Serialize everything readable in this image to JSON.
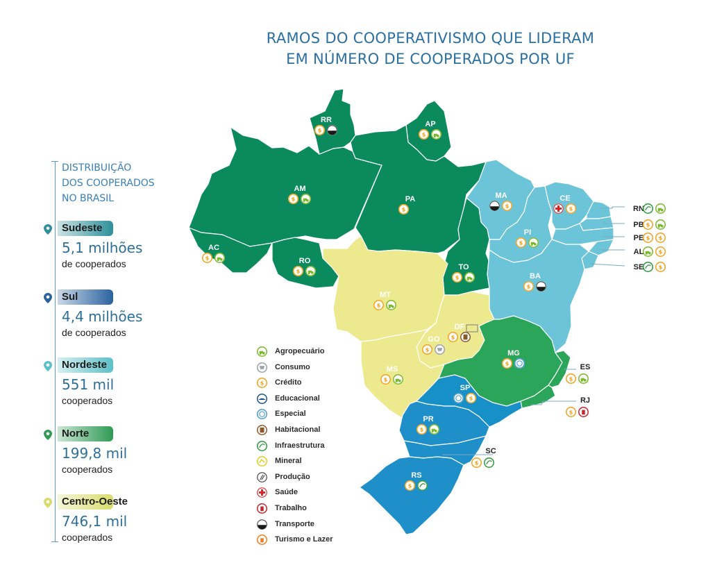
{
  "title": {
    "line1": "RAMOS DO COOPERATIVISMO QUE LIDERAM",
    "line2": "EM NÚMERO DE COOPERADOS POR UF"
  },
  "distribution": {
    "title_lines": [
      "DISTRIBUIÇÃO",
      "DOS COOPERADOS",
      "NO BRASIL"
    ],
    "regions": [
      {
        "name": "Sudeste",
        "value": "5,1 milhões",
        "sub": "de cooperados",
        "color": "#2e8f9a"
      },
      {
        "name": "Sul",
        "value": "4,4 milhões",
        "sub": "de cooperados",
        "color": "#2a62a0"
      },
      {
        "name": "Nordeste",
        "value": "551 mil",
        "sub": "cooperados",
        "color": "#5cc0c8"
      },
      {
        "name": "Norte",
        "value": "199,8 mil",
        "sub": "cooperados",
        "color": "#2f9a55"
      },
      {
        "name": "Centro-Oeste",
        "value": "746,1 mil",
        "sub": "cooperados",
        "color": "#d9dc6c"
      }
    ]
  },
  "colors": {
    "norte": "#0b8a5e",
    "nordeste": "#6cc4d9",
    "centro_oeste": "#ece98e",
    "sudeste_mg": "#2ba55a",
    "sudeste_sp": "#1690c7",
    "sul": "#1e8fc9"
  },
  "states": [
    {
      "abbr": "RR",
      "icons": [
        "credito",
        "transporte"
      ]
    },
    {
      "abbr": "AP",
      "icons": [
        "credito",
        "agropecuario"
      ]
    },
    {
      "abbr": "AM",
      "icons": [
        "credito",
        "agropecuario"
      ]
    },
    {
      "abbr": "PA",
      "icons": [
        "credito"
      ]
    },
    {
      "abbr": "AC",
      "icons": [
        "credito",
        "agropecuario"
      ]
    },
    {
      "abbr": "RO",
      "icons": [
        "credito",
        "agropecuario"
      ]
    },
    {
      "abbr": "TO",
      "icons": [
        "credito",
        "agropecuario"
      ]
    },
    {
      "abbr": "MA",
      "icons": [
        "transporte",
        "credito"
      ]
    },
    {
      "abbr": "CE",
      "icons": [
        "saude",
        "credito"
      ]
    },
    {
      "abbr": "PI",
      "icons": [
        "credito",
        "agropecuario"
      ]
    },
    {
      "abbr": "BA",
      "icons": [
        "credito",
        "transporte"
      ]
    },
    {
      "abbr": "MT",
      "icons": [
        "credito",
        "agropecuario"
      ]
    },
    {
      "abbr": "DF",
      "icons": [
        "credito",
        "habitacional"
      ]
    },
    {
      "abbr": "GO",
      "icons": [
        "credito",
        "consumo"
      ]
    },
    {
      "abbr": "MS",
      "icons": [
        "credito",
        "agropecuario"
      ]
    },
    {
      "abbr": "MG",
      "icons": [
        "credito",
        "especial"
      ]
    },
    {
      "abbr": "SP",
      "icons": [
        "especial",
        "credito"
      ]
    },
    {
      "abbr": "PR",
      "icons": [
        "credito",
        "agropecuario"
      ]
    },
    {
      "abbr": "RS",
      "icons": [
        "credito",
        "infraestrutura"
      ]
    },
    {
      "abbr": "SC",
      "icons": [
        "credito",
        "infraestrutura"
      ]
    },
    {
      "abbr": "ES",
      "icons": [
        "credito",
        "agropecuario"
      ]
    },
    {
      "abbr": "RJ",
      "icons": [
        "credito",
        "trabalho"
      ]
    },
    {
      "abbr": "RN",
      "icons": [
        "infraestrutura",
        "agropecuario"
      ]
    },
    {
      "abbr": "PB",
      "icons": [
        "credito",
        "agropecuario"
      ]
    },
    {
      "abbr": "PE",
      "icons": [
        "credito",
        "credito"
      ]
    },
    {
      "abbr": "AL",
      "icons": [
        "agropecuario",
        "credito"
      ]
    },
    {
      "abbr": "SE",
      "icons": [
        "infraestrutura",
        "credito"
      ]
    }
  ],
  "legend": [
    {
      "key": "agropecuario",
      "label": "Agropecuário",
      "color": "#7ab829"
    },
    {
      "key": "consumo",
      "label": "Consumo",
      "color": "#9aa0a4"
    },
    {
      "key": "credito",
      "label": "Crédito",
      "color": "#f0a21c"
    },
    {
      "key": "educacional",
      "label": "Educacional",
      "color": "#1b4f8c"
    },
    {
      "key": "especial",
      "label": "Especial",
      "color": "#4a9ad0"
    },
    {
      "key": "habitacional",
      "label": "Habitacional",
      "color": "#8a5a2c"
    },
    {
      "key": "infraestrutura",
      "label": "Infraestrutura",
      "color": "#2c9a3a"
    },
    {
      "key": "mineral",
      "label": "Mineral",
      "color": "#e0cf1f"
    },
    {
      "key": "producao",
      "label": "Produção",
      "color": "#3a3a3a"
    },
    {
      "key": "saude",
      "label": "Saúde",
      "color": "#d8252a"
    },
    {
      "key": "trabalho",
      "label": "Trabalho",
      "color": "#c8242c"
    },
    {
      "key": "transporte",
      "label": "Transporte",
      "color": "#1a1a1a"
    },
    {
      "key": "turismo",
      "label": "Turismo e Lazer",
      "color": "#f07d1c"
    }
  ]
}
